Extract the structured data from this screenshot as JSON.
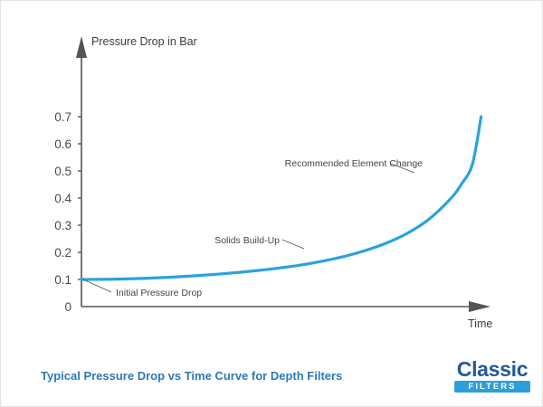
{
  "chart_data": {
    "type": "line",
    "title": "Typical Pressure Drop vs Time Curve for Depth Filters",
    "ylabel": "Pressure Drop in Bar",
    "xlabel": "Time",
    "y_ticks": [
      0,
      0.1,
      0.2,
      0.3,
      0.4,
      0.5,
      0.6,
      0.7
    ],
    "y_tick_labels": [
      "0",
      "0.1",
      "0.2",
      "0.3",
      "0.4",
      "0.5",
      "0.6",
      "0.7"
    ],
    "ylim": [
      0,
      0.7
    ],
    "xlim": [
      0,
      1
    ],
    "x_tick_labels": [],
    "grid": false,
    "series": [
      {
        "color": "#29a3de",
        "x": [
          0,
          0.1,
          0.2,
          0.3,
          0.4,
          0.5,
          0.55,
          0.6,
          0.65,
          0.7,
          0.75,
          0.8,
          0.85,
          0.875,
          0.9,
          0.92
        ],
        "y": [
          0.1,
          0.102,
          0.108,
          0.118,
          0.132,
          0.152,
          0.166,
          0.183,
          0.205,
          0.233,
          0.27,
          0.322,
          0.398,
          0.452,
          0.525,
          0.7
        ]
      }
    ],
    "annotations": [
      {
        "text": "Initial Pressure Drop",
        "x": 0.0,
        "y": 0.1
      },
      {
        "text": "Solids Build-Up",
        "x": 0.63,
        "y": 0.21
      },
      {
        "text": "Recommended Element Change",
        "x": 0.9,
        "y": 0.5
      }
    ]
  },
  "footer": {
    "caption": "Typical Pressure Drop vs Time Curve for Depth Filters",
    "logo_word": "Classic",
    "logo_sub": "FILTERS"
  },
  "colors": {
    "curve": "#29a3de",
    "axes": "#555555",
    "caption": "#2a7ab8",
    "logo_dark": "#1e5a9c",
    "logo_light": "#2c9fd9"
  }
}
